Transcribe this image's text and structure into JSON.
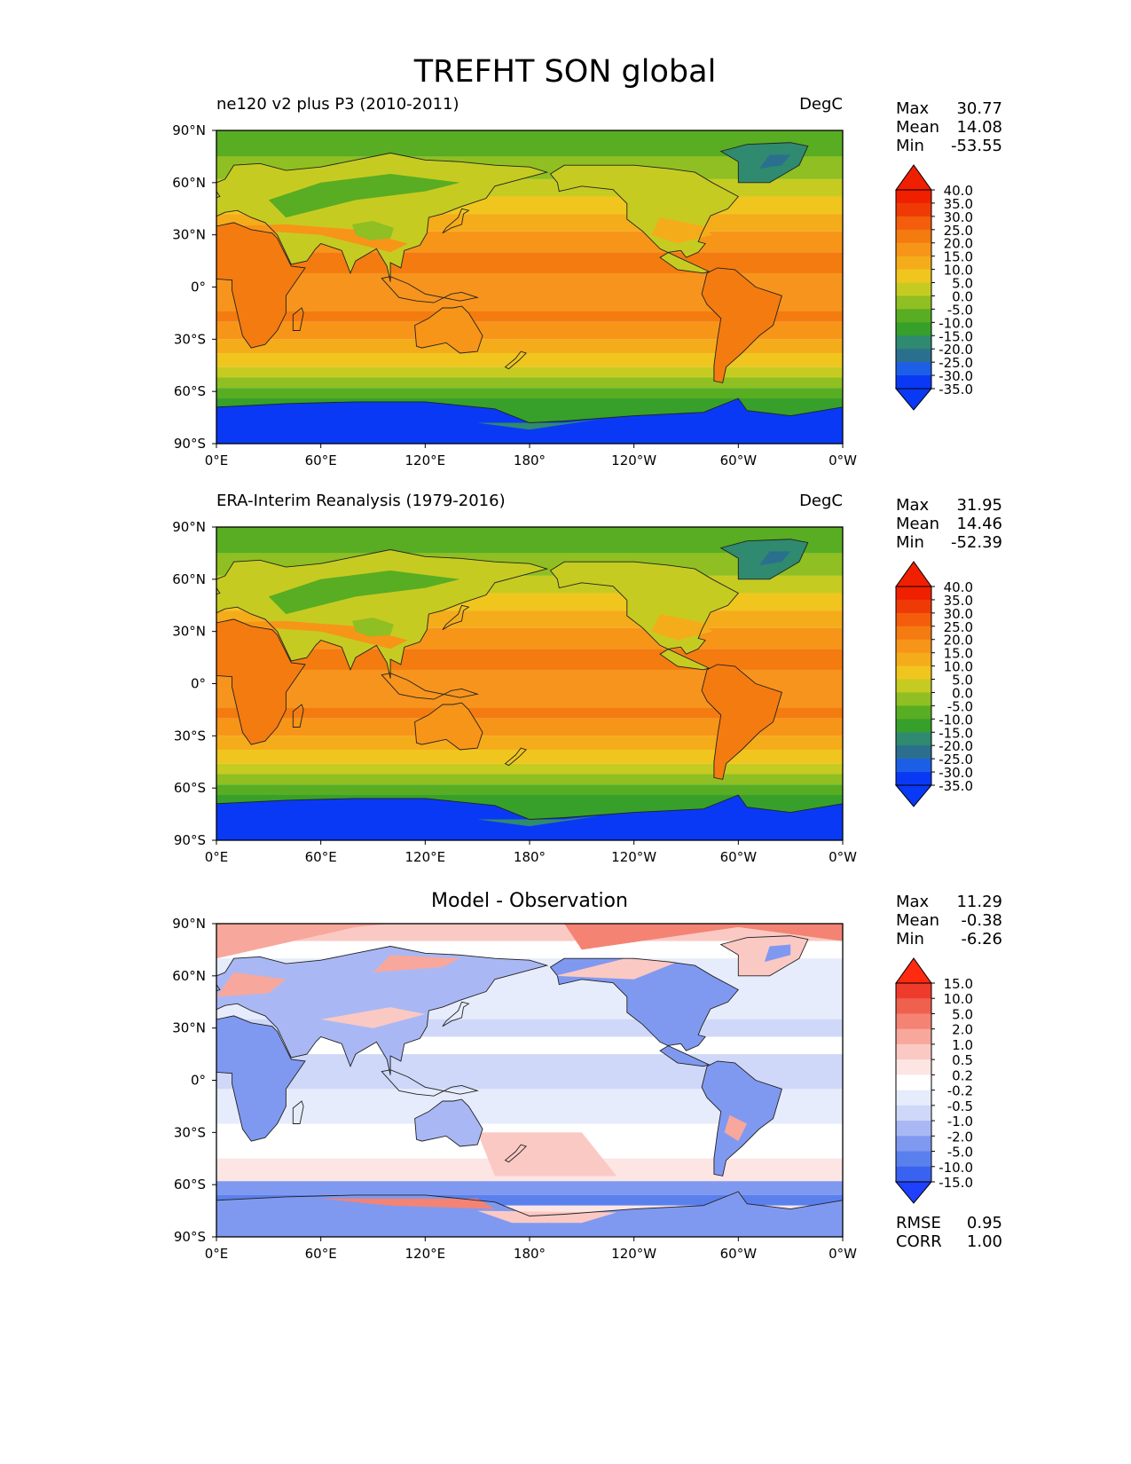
{
  "title": "TREFHT SON global",
  "colors": {
    "ocean_warm": "#f7941d",
    "warm_stops": [
      "#0a39f5",
      "#1c5fe6",
      "#2b6f8f",
      "#2f8a6f",
      "#37a02a",
      "#58ad22",
      "#8fbf22",
      "#c6cb22",
      "#f0c61e",
      "#f5ac1a",
      "#f79518",
      "#f47b10",
      "#f35d0c",
      "#f03a05",
      "#f01f00"
    ],
    "diff_stops": [
      "#2040ff",
      "#3a62f0",
      "#5a80ee",
      "#8099f0",
      "#a9b8f4",
      "#cfd8f8",
      "#e6ecfb",
      "#ffffff",
      "#fde5e3",
      "#fbc9c3",
      "#f8a79c",
      "#f48374",
      "#f0604f",
      "#ee3b2b",
      "#ff2a10"
    ],
    "coast": "#222222"
  },
  "x_ticks": [
    "0°E",
    "60°E",
    "120°E",
    "180°",
    "120°W",
    "60°W",
    "0°W"
  ],
  "y_ticks": [
    "90°N",
    "60°N",
    "30°N",
    "0°",
    "30°S",
    "60°S",
    "90°S"
  ],
  "panels": [
    {
      "left_title": "ne120 v2 plus P3 (2010-2011)",
      "center_title": "",
      "units": "DegC",
      "stats": [
        [
          "Max",
          "30.77"
        ],
        [
          "Mean",
          "14.08"
        ],
        [
          "Min",
          "-53.55"
        ]
      ],
      "colorbar": [
        "40.0",
        "35.0",
        "30.0",
        "25.0",
        "20.0",
        "15.0",
        "10.0",
        "5.0",
        "0.0",
        "-5.0",
        "-10.0",
        "-15.0",
        "-20.0",
        "-25.0",
        "-30.0",
        "-35.0"
      ],
      "extra": []
    },
    {
      "left_title": "ERA-Interim Reanalysis (1979-2016)",
      "center_title": "",
      "units": "DegC",
      "stats": [
        [
          "Max",
          "31.95"
        ],
        [
          "Mean",
          "14.46"
        ],
        [
          "Min",
          "-52.39"
        ]
      ],
      "colorbar": [
        "40.0",
        "35.0",
        "30.0",
        "25.0",
        "20.0",
        "15.0",
        "10.0",
        "5.0",
        "0.0",
        "-5.0",
        "-10.0",
        "-15.0",
        "-20.0",
        "-25.0",
        "-30.0",
        "-35.0"
      ],
      "extra": []
    },
    {
      "left_title": "",
      "center_title": "Model - Observation",
      "units": "",
      "stats": [
        [
          "Max",
          "11.29"
        ],
        [
          "Mean",
          "-0.38"
        ],
        [
          "Min",
          "-6.26"
        ]
      ],
      "colorbar": [
        "15.0",
        "10.0",
        "5.0",
        "2.0",
        "1.0",
        "0.5",
        "0.2",
        "-0.2",
        "-0.5",
        "-1.0",
        "-2.0",
        "-5.0",
        "-10.0",
        "-15.0"
      ],
      "extra": [
        [
          "RMSE",
          "0.95"
        ],
        [
          "CORR",
          "1.00"
        ]
      ]
    }
  ],
  "chart_data": [
    {
      "type": "heatmap",
      "title": "ne120 v2 plus P3 (2010-2011)",
      "variable": "TREFHT",
      "season": "SON",
      "units": "DegC",
      "xlim": [
        0,
        360
      ],
      "ylim": [
        -90,
        90
      ],
      "levels": [
        -35,
        -30,
        -25,
        -20,
        -15,
        -10,
        -5,
        0,
        5,
        10,
        15,
        20,
        25,
        30,
        35,
        40
      ],
      "stats": {
        "max": 30.77,
        "mean": 14.08,
        "min": -53.55
      }
    },
    {
      "type": "heatmap",
      "title": "ERA-Interim Reanalysis (1979-2016)",
      "variable": "TREFHT",
      "season": "SON",
      "units": "DegC",
      "xlim": [
        0,
        360
      ],
      "ylim": [
        -90,
        90
      ],
      "levels": [
        -35,
        -30,
        -25,
        -20,
        -15,
        -10,
        -5,
        0,
        5,
        10,
        15,
        20,
        25,
        30,
        35,
        40
      ],
      "stats": {
        "max": 31.95,
        "mean": 14.46,
        "min": -52.39
      }
    },
    {
      "type": "heatmap",
      "title": "Model - Observation",
      "variable": "TREFHT",
      "season": "SON",
      "units": "DegC",
      "xlim": [
        0,
        360
      ],
      "ylim": [
        -90,
        90
      ],
      "levels": [
        -15,
        -10,
        -5,
        -2,
        -1,
        -0.5,
        -0.2,
        0.2,
        0.5,
        1,
        2,
        5,
        10,
        15
      ],
      "stats": {
        "max": 11.29,
        "mean": -0.38,
        "min": -6.26,
        "rmse": 0.95,
        "corr": 1.0
      }
    }
  ]
}
